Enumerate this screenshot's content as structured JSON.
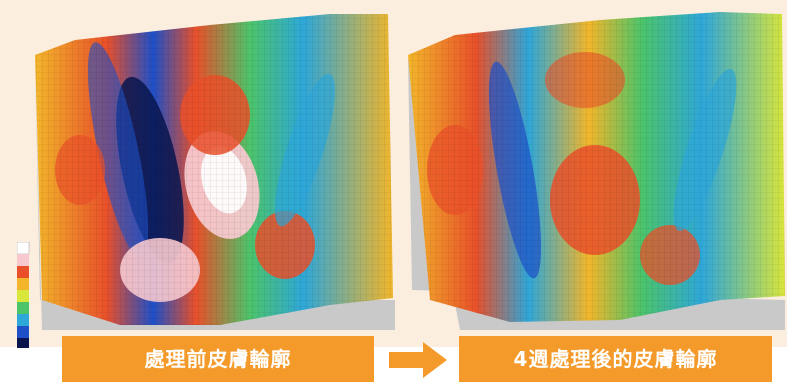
{
  "labels": {
    "before": "處理前皮膚輪廓",
    "after": "4週處理後的皮膚輪廓"
  },
  "colors": {
    "background": "#fbeedf",
    "label_fill": "#f39a2a",
    "label_text": "#ffffff",
    "surface_gradient": [
      "#08154d",
      "#1e50c8",
      "#2ea7d9",
      "#4cc46a",
      "#d9e63a",
      "#f3b62a",
      "#e9502a",
      "#f7c9cf",
      "#ffffff"
    ]
  },
  "icons": {
    "arrow": "right-arrow-icon"
  }
}
